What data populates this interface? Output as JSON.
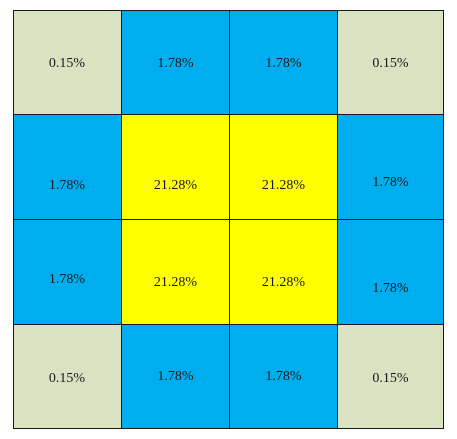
{
  "colors": {
    "corner": "#d9e2c1",
    "edge": "#00aeef",
    "center": "#ffff00",
    "grid_line": "#1a1a1a",
    "text": "#1a1a1a"
  },
  "grid": {
    "rows": [
      [
        {
          "label": "0.15%",
          "kind": "corner"
        },
        {
          "label": "1.78%",
          "kind": "edge"
        },
        {
          "label": "1.78%",
          "kind": "edge"
        },
        {
          "label": "0.15%",
          "kind": "corner"
        }
      ],
      [
        {
          "label": "1.78%",
          "kind": "edge"
        },
        {
          "label": "21.28%",
          "kind": "center"
        },
        {
          "label": "21.28%",
          "kind": "center"
        },
        {
          "label": "1.78%",
          "kind": "edge"
        }
      ],
      [
        {
          "label": "1.78%",
          "kind": "edge"
        },
        {
          "label": "21.28%",
          "kind": "center"
        },
        {
          "label": "21.28%",
          "kind": "center"
        },
        {
          "label": "1.78%",
          "kind": "edge"
        }
      ],
      [
        {
          "label": "0.15%",
          "kind": "corner"
        },
        {
          "label": "1.78%",
          "kind": "edge"
        },
        {
          "label": "1.78%",
          "kind": "edge"
        },
        {
          "label": "0.15%",
          "kind": "corner"
        }
      ]
    ]
  }
}
